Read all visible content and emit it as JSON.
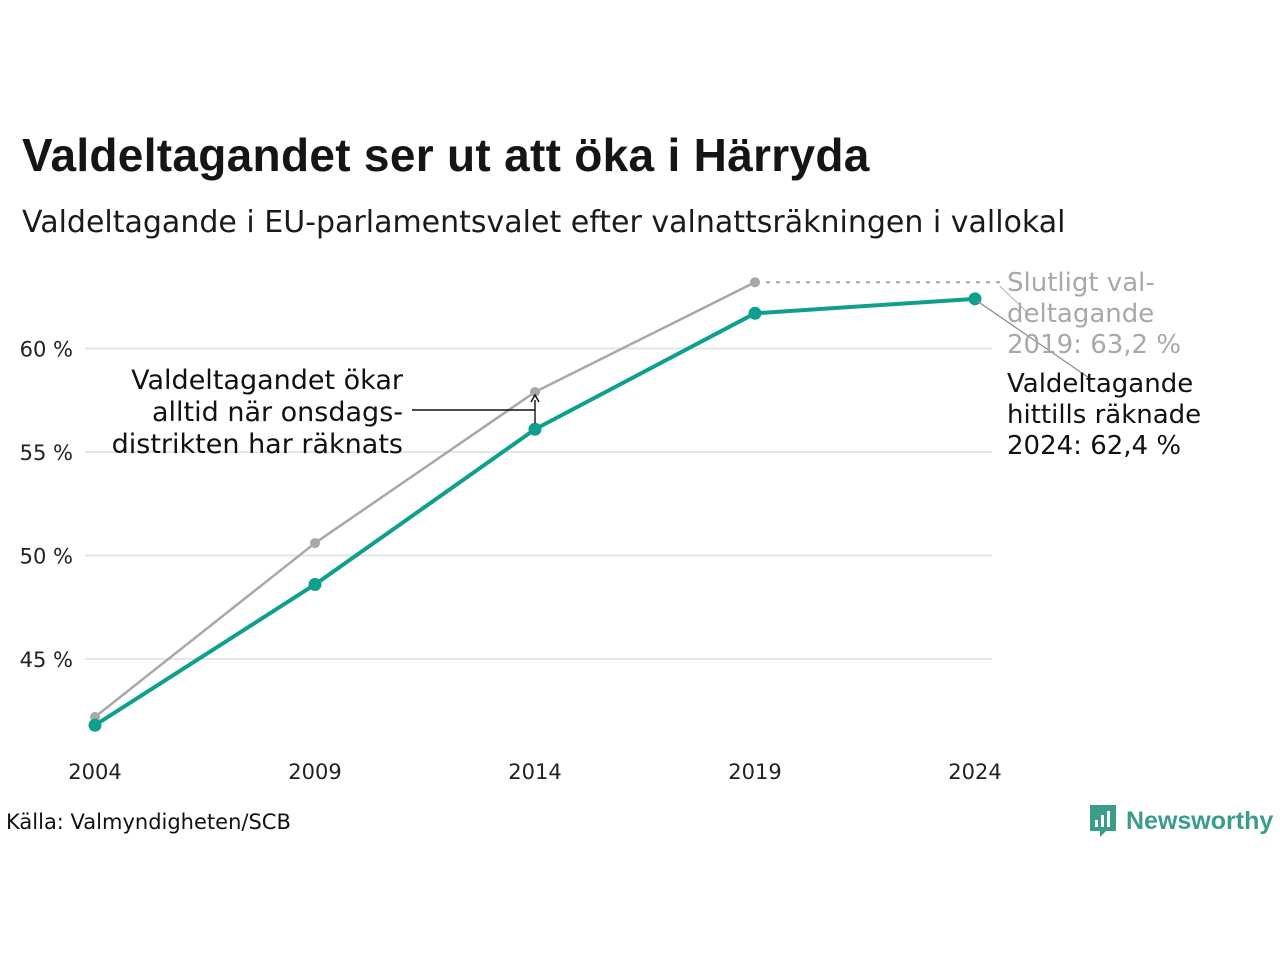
{
  "title": "Valdeltagandet ser ut att öka i Härryda",
  "subtitle": "Valdeltagande i EU-parlamentsvalet efter valnattsräkningen i vallokal",
  "source": "Källa: Valmyndigheten/SCB",
  "brand": {
    "name": "Newsworthy",
    "icon": "newsworthy-logo-icon",
    "color": "#3a9d8c"
  },
  "chart_data": {
    "type": "line",
    "x": [
      "2004",
      "2009",
      "2014",
      "2019",
      "2024"
    ],
    "ylim": [
      41,
      63.5
    ],
    "yticks": [
      45,
      50,
      55,
      60
    ],
    "ytick_labels": [
      "45 %",
      "50 %",
      "55 %",
      "60 %"
    ],
    "grid": true,
    "series": [
      {
        "key": "final",
        "color": "#a8a8a8",
        "values": [
          42.2,
          50.6,
          57.9,
          63.2,
          null
        ]
      },
      {
        "key": "election_night",
        "color": "#0e9f8f",
        "values": [
          41.8,
          48.6,
          56.1,
          61.7,
          62.4
        ]
      }
    ],
    "annotations": {
      "final_label": [
        "Slutligt val-",
        "deltagande",
        "2019: 63,2 %"
      ],
      "counted_label": [
        "Valdeltagande",
        "hittills räknade",
        "2024: 62,4 %"
      ],
      "note_label": [
        "Valdeltagandet ökar",
        "alltid när onsdags-",
        "distrikten har räknats"
      ]
    }
  }
}
